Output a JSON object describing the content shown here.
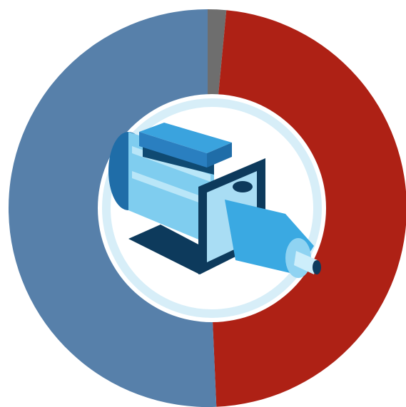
{
  "chart_data": {
    "type": "donut",
    "values": [
      1.5,
      47.8,
      50.7
    ],
    "colors": [
      "#6e6e6e",
      "#ae2115",
      "#5780aa"
    ]
  }
}
